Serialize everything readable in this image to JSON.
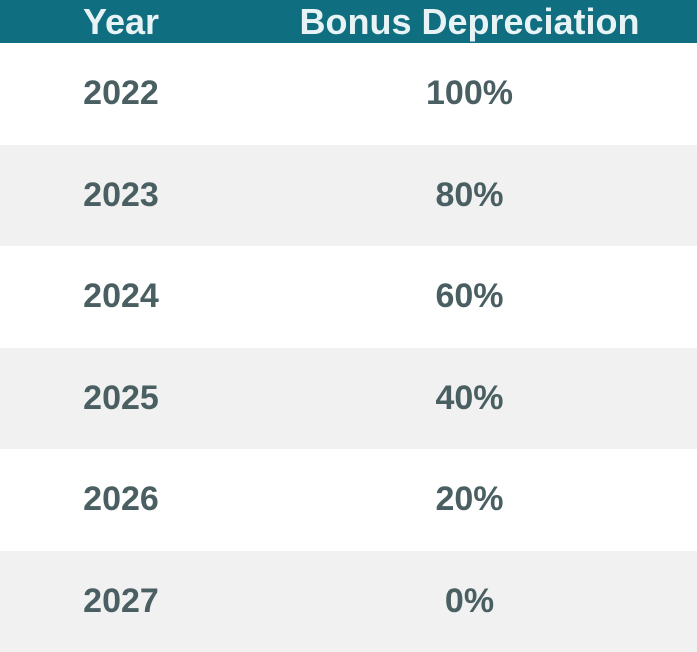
{
  "table": {
    "headers": [
      "Year",
      "Bonus Depreciation"
    ],
    "rows": [
      {
        "year": "2022",
        "bonus": "100%"
      },
      {
        "year": "2023",
        "bonus": "80%"
      },
      {
        "year": "2024",
        "bonus": "60%"
      },
      {
        "year": "2025",
        "bonus": "40%"
      },
      {
        "year": "2026",
        "bonus": "20%"
      },
      {
        "year": "2027",
        "bonus": "0%"
      }
    ]
  },
  "colors": {
    "header_bg": "#0f6e80",
    "header_text": "#e8f3f5",
    "row_alt_bg": "#f1f1f1",
    "cell_text": "#4a5f62"
  },
  "chart_data": {
    "type": "table",
    "columns": [
      "Year",
      "Bonus Depreciation"
    ],
    "rows": [
      [
        "2022",
        "100%"
      ],
      [
        "2023",
        "80%"
      ],
      [
        "2024",
        "60%"
      ],
      [
        "2025",
        "40%"
      ],
      [
        "2026",
        "20%"
      ],
      [
        "2027",
        "0%"
      ]
    ]
  }
}
